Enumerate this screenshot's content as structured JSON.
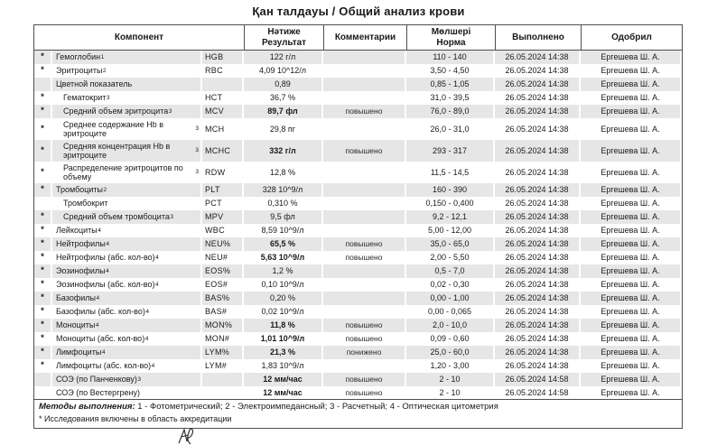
{
  "title": "Қан  талдауы / Общий анализ крови",
  "colors": {
    "row_shade": "#e6e6e6",
    "border": "#4f4f4f",
    "text": "#1a1a1a"
  },
  "table": {
    "headers": {
      "component": "Компонент",
      "result_line1": "Нәтиже",
      "result_line2": "Результат",
      "comments": "Комментарии",
      "norm_line1": "Мөлшері",
      "norm_line2": "Норма",
      "executed": "Выполнено",
      "approved": "Одобрил"
    },
    "rows": [
      {
        "star": "*",
        "name": "Гемоглобин",
        "sup": "1",
        "code": "HGB",
        "result": "122 г/л",
        "result_bold": false,
        "comment": "",
        "norm": "110 - 140",
        "executed": "26.05.2024 14:38",
        "approved": "Ергешева Ш. А.",
        "shaded": true,
        "indent": false
      },
      {
        "star": "*",
        "name": "Эритроциты",
        "sup": "2",
        "code": "RBC",
        "result": "4,09 10^12/л",
        "result_bold": false,
        "comment": "",
        "norm": "3,50 - 4,50",
        "executed": "26.05.2024 14:38",
        "approved": "Ергешева Ш. А.",
        "shaded": false,
        "indent": false
      },
      {
        "star": "",
        "name": "Цветной показатель",
        "sup": "",
        "code": "",
        "result": "0,89",
        "result_bold": false,
        "comment": "",
        "norm": "0,85 - 1,05",
        "executed": "26.05.2024 14:38",
        "approved": "Ергешева Ш. А.",
        "shaded": true,
        "indent": false
      },
      {
        "star": "*",
        "name": "Гематокрит",
        "sup": "3",
        "code": "HCT",
        "result": "36,7 %",
        "result_bold": false,
        "comment": "",
        "norm": "31,0 - 39,5",
        "executed": "26.05.2024 14:38",
        "approved": "Ергешева Ш. А.",
        "shaded": false,
        "indent": true
      },
      {
        "star": "*",
        "name": "Средний объем эритроцита",
        "sup": "3",
        "code": "MCV",
        "result": "89,7 фл",
        "result_bold": true,
        "comment": "повышено",
        "norm": "76,0 - 89,0",
        "executed": "26.05.2024 14:38",
        "approved": "Ергешева Ш. А.",
        "shaded": true,
        "indent": true
      },
      {
        "star": "*",
        "name": "Среднее содержание Hb в эритроците",
        "sup": "3",
        "code": "MCH",
        "result": "29,8 пг",
        "result_bold": false,
        "comment": "",
        "norm": "26,0 - 31,0",
        "executed": "26.05.2024 14:38",
        "approved": "Ергешева Ш. А.",
        "shaded": false,
        "indent": true
      },
      {
        "star": "*",
        "name": "Средняя концентрация Hb в эритроците",
        "sup": "3",
        "code": "MCHC",
        "result": "332 г/л",
        "result_bold": true,
        "comment": "повышено",
        "norm": "293 - 317",
        "executed": "26.05.2024 14:38",
        "approved": "Ергешева Ш. А.",
        "shaded": true,
        "indent": true
      },
      {
        "star": "*",
        "name": "Распределение эритроцитов по объему",
        "sup": "3",
        "code": "RDW",
        "result": "12,8 %",
        "result_bold": false,
        "comment": "",
        "norm": "11,5 - 14,5",
        "executed": "26.05.2024 14:38",
        "approved": "Ергешева Ш. А.",
        "shaded": false,
        "indent": true
      },
      {
        "star": "*",
        "name": "Тромбоциты",
        "sup": "2",
        "code": "PLT",
        "result": "328 10^9/л",
        "result_bold": false,
        "comment": "",
        "norm": "160 - 390",
        "executed": "26.05.2024 14:38",
        "approved": "Ергешева Ш. А.",
        "shaded": true,
        "indent": false
      },
      {
        "star": "",
        "name": "Тромбокрит",
        "sup": "",
        "code": "PCT",
        "result": "0,310 %",
        "result_bold": false,
        "comment": "",
        "norm": "0,150 - 0,400",
        "executed": "26.05.2024 14:38",
        "approved": "Ергешева Ш. А.",
        "shaded": false,
        "indent": true
      },
      {
        "star": "*",
        "name": "Средний объем тромбоцита",
        "sup": "3",
        "code": "MPV",
        "result": "9,5 фл",
        "result_bold": false,
        "comment": "",
        "norm": "9,2 - 12,1",
        "executed": "26.05.2024 14:38",
        "approved": "Ергешева Ш. А.",
        "shaded": true,
        "indent": true
      },
      {
        "star": "*",
        "name": "Лейкоциты",
        "sup": "4",
        "code": "WBC",
        "result": "8,59 10^9/л",
        "result_bold": false,
        "comment": "",
        "norm": "5,00 - 12,00",
        "executed": "26.05.2024 14:38",
        "approved": "Ергешева Ш. А.",
        "shaded": false,
        "indent": false
      },
      {
        "star": "*",
        "name": "Нейтрофилы",
        "sup": "4",
        "code": "NEU%",
        "result": "65,5 %",
        "result_bold": true,
        "comment": "повышено",
        "norm": "35,0 - 65,0",
        "executed": "26.05.2024 14:38",
        "approved": "Ергешева Ш. А.",
        "shaded": true,
        "indent": false
      },
      {
        "star": "*",
        "name": "Нейтрофилы (абс. кол-во)",
        "sup": "4",
        "code": "NEU#",
        "result": "5,63 10^9/л",
        "result_bold": true,
        "comment": "повышено",
        "norm": "2,00 - 5,50",
        "executed": "26.05.2024 14:38",
        "approved": "Ергешева Ш. А.",
        "shaded": false,
        "indent": false
      },
      {
        "star": "*",
        "name": "Эозинофилы",
        "sup": "4",
        "code": "EOS%",
        "result": "1,2 %",
        "result_bold": false,
        "comment": "",
        "norm": "0,5 - 7,0",
        "executed": "26.05.2024 14:38",
        "approved": "Ергешева Ш. А.",
        "shaded": true,
        "indent": false
      },
      {
        "star": "*",
        "name": "Эозинофилы (абс. кол-во)",
        "sup": "4",
        "code": "EOS#",
        "result": "0,10 10^9/л",
        "result_bold": false,
        "comment": "",
        "norm": "0,02 - 0,30",
        "executed": "26.05.2024 14:38",
        "approved": "Ергешева Ш. А.",
        "shaded": false,
        "indent": false
      },
      {
        "star": "*",
        "name": "Базофилы",
        "sup": "4",
        "code": "BAS%",
        "result": "0,20 %",
        "result_bold": false,
        "comment": "",
        "norm": "0,00 - 1,00",
        "executed": "26.05.2024 14:38",
        "approved": "Ергешева Ш. А.",
        "shaded": true,
        "indent": false
      },
      {
        "star": "*",
        "name": "Базофилы (абс. кол-во)",
        "sup": "4",
        "code": "BAS#",
        "result": "0,02 10^9/л",
        "result_bold": false,
        "comment": "",
        "norm": "0,00 - 0,065",
        "executed": "26.05.2024 14:38",
        "approved": "Ергешева Ш. А.",
        "shaded": false,
        "indent": false
      },
      {
        "star": "*",
        "name": "Моноциты",
        "sup": "4",
        "code": "MON%",
        "result": "11,8 %",
        "result_bold": true,
        "comment": "повышено",
        "norm": "2,0 - 10,0",
        "executed": "26.05.2024 14:38",
        "approved": "Ергешева Ш. А.",
        "shaded": true,
        "indent": false
      },
      {
        "star": "*",
        "name": "Моноциты (абс. кол-во)",
        "sup": "4",
        "code": "MON#",
        "result": "1,01 10^9/л",
        "result_bold": true,
        "comment": "повышено",
        "norm": "0,09 - 0,60",
        "executed": "26.05.2024 14:38",
        "approved": "Ергешева Ш. А.",
        "shaded": false,
        "indent": false
      },
      {
        "star": "*",
        "name": "Лимфоциты",
        "sup": "4",
        "code": "LYM%",
        "result": "21,3 %",
        "result_bold": true,
        "comment": "понижено",
        "norm": "25,0 - 60,0",
        "executed": "26.05.2024 14:38",
        "approved": "Ергешева Ш. А.",
        "shaded": true,
        "indent": false
      },
      {
        "star": "*",
        "name": "Лимфоциты (абс. кол-во)",
        "sup": "4",
        "code": "LYM#",
        "result": "1,83 10^9/л",
        "result_bold": false,
        "comment": "",
        "norm": "1,20 - 3,00",
        "executed": "26.05.2024 14:38",
        "approved": "Ергешева Ш. А.",
        "shaded": false,
        "indent": false
      },
      {
        "star": "",
        "name": "СОЭ (по Панченкову)",
        "sup": "3",
        "code": "",
        "result": "12 мм/час",
        "result_bold": true,
        "comment": "повышено",
        "norm": "2 - 10",
        "executed": "26.05.2024 14:58",
        "approved": "Ергешева Ш. А.",
        "shaded": true,
        "indent": false
      },
      {
        "star": "",
        "name": "СОЭ (по Вестергрену)",
        "sup": "",
        "code": "",
        "result": "12 мм/час",
        "result_bold": true,
        "comment": "повышено",
        "norm": "2 - 10",
        "executed": "26.05.2024 14:58",
        "approved": "Ергешева Ш. А.",
        "shaded": false,
        "indent": false
      }
    ]
  },
  "footer": {
    "methods_label": "Методы выполнения:",
    "methods_text": " 1 - Фотометрический; 2 - Электроимпедансный; 3 - Расчетный; 4 - Оптическая цитометрия",
    "accreditation": "* Исследования включены в область аккредитации"
  }
}
